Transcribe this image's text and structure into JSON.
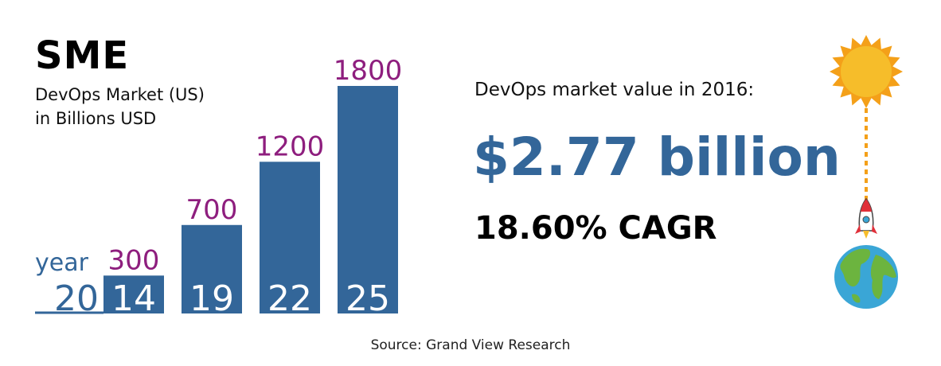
{
  "colors": {
    "bar": "#336699",
    "value_label": "#8e1e7e",
    "year_label_on_bar": "#ffffff",
    "year_label_off_bar": "#336699",
    "big_value": "#336699",
    "sun": "#f6bd2a",
    "sun_rays": "#f4a019",
    "earth_ocean": "#3aa6d6",
    "earth_land": "#6cb43f"
  },
  "title": "SME",
  "subtitle": [
    "DevOps Market (US)",
    "in Billions USD"
  ],
  "stat": {
    "caption": "DevOps market value in 2016:",
    "value": "$2.77 billion",
    "cagr": "18.60% CAGR"
  },
  "source": "Source: Grand View Research",
  "decoration": {
    "icons": [
      "sun-icon",
      "rocket-icon",
      "earth-icon"
    ]
  },
  "chart_data": {
    "type": "bar",
    "year_prefix_label": "year",
    "century_label": "20",
    "categories": [
      "14",
      "19",
      "22",
      "25"
    ],
    "values": [
      300,
      700,
      1200,
      1800
    ],
    "value_labels": [
      "300",
      "700",
      "1200",
      "1800"
    ],
    "ylim": [
      0,
      1800
    ],
    "grid": false,
    "legend": "none"
  }
}
